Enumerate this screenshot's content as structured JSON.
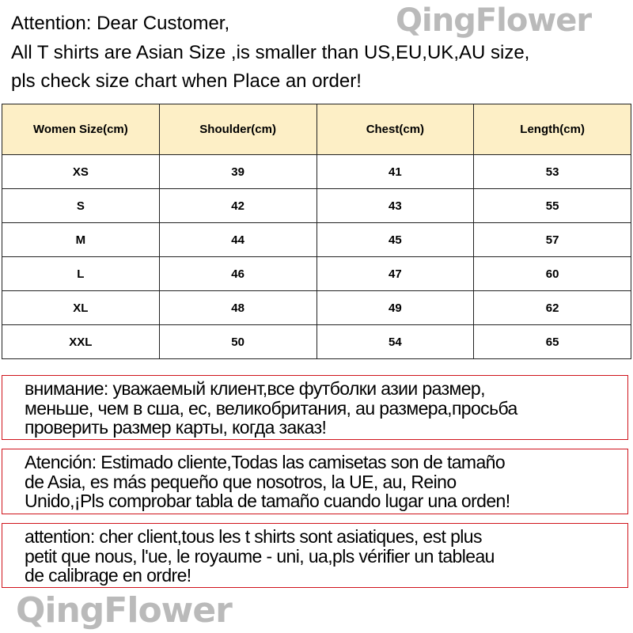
{
  "intro": [
    "Attention: Dear Customer,",
    "All T shirts are  Asian Size ,is smaller than US,EU,UK,AU size,",
    "pls check size chart when Place an order!"
  ],
  "watermark": "QingFlower",
  "table": {
    "headers": [
      "Women Size(cm)",
      "Shoulder(cm)",
      "Chest(cm)",
      "Length(cm)"
    ],
    "header_bg": "#fdefc6",
    "rows": [
      [
        "XS",
        "39",
        "41",
        "53"
      ],
      [
        "S",
        "42",
        "43",
        "55"
      ],
      [
        "M",
        "44",
        "45",
        "57"
      ],
      [
        "L",
        "46",
        "47",
        "60"
      ],
      [
        "XL",
        "48",
        "49",
        "62"
      ],
      [
        "XXL",
        "50",
        "54",
        "65"
      ]
    ]
  },
  "notices": [
    {
      "lang": "ru",
      "lines": [
        "внимание: уважаемый клиент,все футболки азии размер,",
        "меньше, чем в сша, ес, великобритания, au размера,просьба",
        "проверить размер карты, когда заказ!"
      ]
    },
    {
      "lang": "es",
      "lines": [
        "Atención: Estimado cliente,Todas las camisetas son de tamaño",
        "de Asia, es más pequeño que nosotros, la UE, au, Reino",
        "Unido,¡Pls comprobar tabla de tamaño cuando lugar una orden!"
      ]
    },
    {
      "lang": "fr",
      "lines": [
        "attention: cher client,tous les t shirts sont asiatiques, est plus",
        "petit que nous, l'ue, le royaume - uni, ua,pls vérifier un tableau",
        "de calibrage en ordre!"
      ]
    }
  ],
  "border_color": "#d0141c"
}
